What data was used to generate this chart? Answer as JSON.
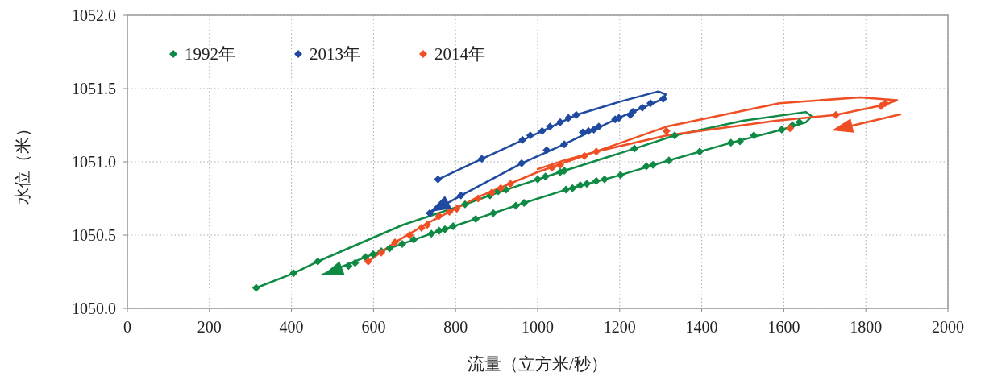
{
  "chart_data": {
    "type": "line",
    "xlabel": "流量（立方米/秒）",
    "ylabel": "水位（米）",
    "xlim": [
      0,
      2000
    ],
    "xticks": [
      0,
      200,
      400,
      600,
      800,
      1000,
      1200,
      1400,
      1600,
      1800,
      2000
    ],
    "ylim": [
      1050,
      1052
    ],
    "yticks": [
      {
        "value": 1050,
        "label": "1050.0"
      },
      1050.5,
      {
        "value": 1051,
        "label": "1051.0"
      },
      1051.5,
      {
        "value": 1052,
        "label": "1052.0"
      }
    ],
    "grid": true,
    "legend": "top left",
    "line_style": "solid",
    "series": [
      {
        "color": "#0e8a45",
        "x": [
          314,
          405,
          464,
          672,
          823,
          923,
          1055,
          1236,
          1334,
          1500,
          1654,
          1668,
          1654,
          1595,
          1471,
          1320,
          1202,
          1069,
          967,
          849,
          741,
          639,
          580,
          475
        ],
        "values": [
          1050.14,
          1050.24,
          1050.32,
          1050.57,
          1050.71,
          1050.81,
          1050.93,
          1051.09,
          1051.18,
          1051.28,
          1051.34,
          1051.31,
          1051.27,
          1051.22,
          1051.13,
          1051.01,
          1050.91,
          1050.81,
          1050.72,
          1050.61,
          1050.51,
          1050.41,
          1050.35,
          1050.23
        ]
      },
      {
        "color": "#1f4aa0",
        "x": [
          757,
          864,
          1011,
          1094,
          1200,
          1294,
          1312,
          1306,
          1198,
          1065,
          961,
          813,
          737
        ],
        "values": [
          1050.88,
          1051.02,
          1051.21,
          1051.32,
          1051.41,
          1051.48,
          1051.46,
          1051.43,
          1051.3,
          1051.12,
          1050.99,
          1050.77,
          1050.65
        ]
      },
      {
        "color": "#f04e23",
        "x": [
          587,
          652,
          731,
          855,
          1000,
          1314,
          1589,
          1786,
          1876,
          1847,
          1727,
          1580,
          1314,
          1143,
          1065,
          1000
        ],
        "values": [
          1050.32,
          1050.45,
          1050.58,
          1050.76,
          1050.93,
          1051.24,
          1051.4,
          1051.44,
          1051.42,
          1051.39,
          1051.32,
          1051.28,
          1051.18,
          1051.07,
          1051.01,
          1050.95
        ]
      },
      {
        "type": "scatter",
        "name": "1992年",
        "color": "#0e8a45",
        "marker": "diamond",
        "x": [
          314,
          405,
          464,
          823,
          884,
          904,
          923,
          1000,
          1019,
          1055,
          1065,
          1236,
          1334,
          1621,
          1638,
          1595,
          1527,
          1493,
          1471,
          1395,
          1320,
          1281,
          1265,
          1202,
          1163,
          1143,
          1120,
          1104,
          1085,
          1069,
          967,
          947,
          892,
          849,
          794,
          774,
          760,
          741,
          698,
          670,
          639,
          619,
          599,
          580,
          555,
          539
        ],
        "values": [
          1050.14,
          1050.24,
          1050.32,
          1050.71,
          1050.77,
          1050.8,
          1050.81,
          1050.88,
          1050.9,
          1050.93,
          1050.94,
          1051.09,
          1051.18,
          1051.25,
          1051.27,
          1051.22,
          1051.18,
          1051.14,
          1051.13,
          1051.07,
          1051.01,
          1050.98,
          1050.97,
          1050.91,
          1050.88,
          1050.87,
          1050.85,
          1050.84,
          1050.82,
          1050.81,
          1050.72,
          1050.7,
          1050.65,
          1050.61,
          1050.56,
          1050.54,
          1050.53,
          1050.51,
          1050.47,
          1050.44,
          1050.41,
          1050.39,
          1050.37,
          1050.35,
          1050.31,
          1050.29
        ]
      },
      {
        "type": "scatter",
        "name": "2013年",
        "color": "#1f4aa0",
        "marker": "diamond",
        "x": [
          757,
          864,
          963,
          982,
          1011,
          1030,
          1055,
          1075,
          1094,
          1306,
          1275,
          1255,
          1232,
          1226,
          1198,
          1189,
          1149,
          1137,
          1124,
          1110,
          1065,
          1022,
          961,
          813,
          737
        ],
        "values": [
          1050.88,
          1051.02,
          1051.15,
          1051.18,
          1051.21,
          1051.24,
          1051.27,
          1051.3,
          1051.32,
          1051.43,
          1051.4,
          1051.37,
          1051.34,
          1051.32,
          1051.3,
          1051.29,
          1051.24,
          1051.22,
          1051.21,
          1051.2,
          1051.12,
          1051.08,
          1050.99,
          1050.77,
          1050.65
        ]
      },
      {
        "type": "scatter",
        "name": "2014年",
        "color": "#f04e23",
        "marker": "diamond",
        "x": [
          1035,
          1055,
          934,
          910,
          888,
          855,
          803,
          785,
          760,
          731,
          717,
          688,
          652,
          619,
          587,
          1114,
          1143,
          1314,
          1727,
          1615,
          1837,
          1847
        ],
        "values": [
          1050.96,
          1050.98,
          1050.85,
          1050.82,
          1050.79,
          1050.75,
          1050.68,
          1050.66,
          1050.63,
          1050.57,
          1050.55,
          1050.5,
          1050.45,
          1050.38,
          1050.32,
          1051.04,
          1051.07,
          1051.21,
          1051.32,
          1051.23,
          1051.38,
          1051.4
        ]
      }
    ]
  }
}
